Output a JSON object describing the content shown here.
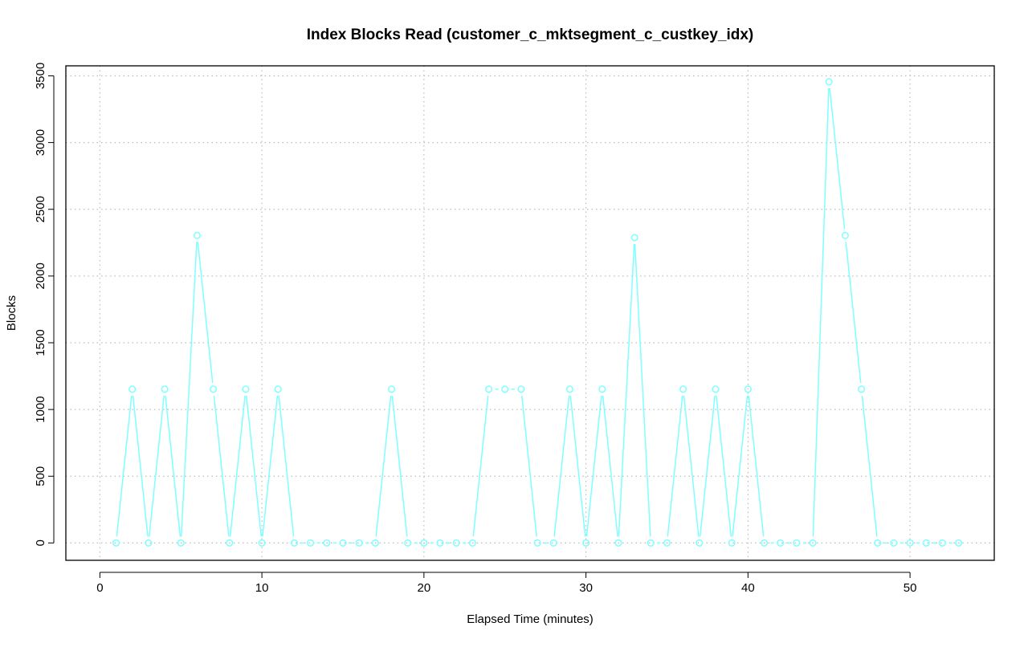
{
  "chart_data": {
    "type": "line",
    "title": "Index Blocks Read (customer_c_mktsegment_c_custkey_idx)",
    "xlabel": "Elapsed Time (minutes)",
    "ylabel": "Blocks",
    "xlim": [
      -2.1,
      55.2
    ],
    "ylim": [
      -130,
      3575
    ],
    "x_ticks": [
      0,
      10,
      20,
      30,
      40,
      50
    ],
    "y_ticks": [
      0,
      500,
      1000,
      1500,
      2000,
      2500,
      3000,
      3500
    ],
    "grid": true,
    "legend": "none",
    "series": [
      {
        "color": "#7FFFFF",
        "marker": "circle",
        "x": [
          1,
          2,
          3,
          4,
          5,
          6,
          7,
          8,
          9,
          10,
          11,
          12,
          13,
          14,
          15,
          16,
          17,
          18,
          19,
          20,
          21,
          22,
          23,
          24,
          25,
          26,
          27,
          28,
          29,
          30,
          31,
          32,
          33,
          34,
          35,
          36,
          37,
          38,
          39,
          40,
          41,
          42,
          43,
          44,
          45,
          46,
          47,
          48,
          49,
          50,
          51,
          52,
          53
        ],
        "y": [
          0,
          1152,
          0,
          1152,
          0,
          2304,
          1152,
          0,
          1152,
          0,
          1152,
          0,
          0,
          0,
          0,
          0,
          0,
          1152,
          0,
          0,
          0,
          0,
          0,
          1152,
          1152,
          1152,
          0,
          0,
          1152,
          0,
          1152,
          0,
          2288,
          0,
          0,
          1152,
          0,
          1152,
          0,
          1152,
          0,
          0,
          0,
          0,
          3456,
          2304,
          1152,
          0,
          0,
          0,
          0,
          0,
          0
        ]
      }
    ]
  }
}
